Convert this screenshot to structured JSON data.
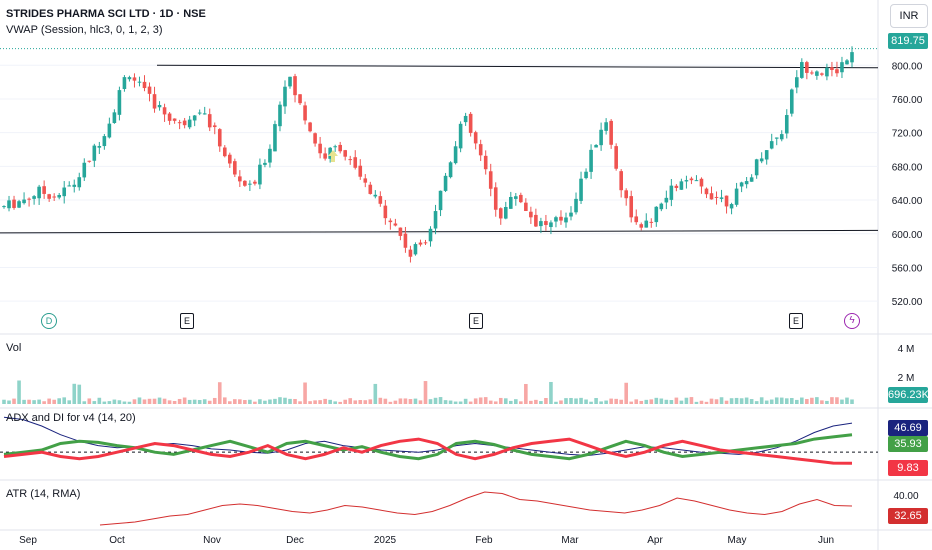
{
  "header": {
    "title": "STRIDES PHARMA SCI LTD · 1D · NSE",
    "vwap_label": "VWAP (Session, hlc3, 0, 1, 2, 3)",
    "currency": "INR"
  },
  "panes": {
    "volume_label": "Vol",
    "adx_label": "ADX and DI for v4 (14, 20)",
    "atr_label": "ATR (14, RMA)"
  },
  "badges": {
    "price": "819.75",
    "volume": "696.23K",
    "adx": "46.69",
    "di_plus": "35.93",
    "di_minus": "9.83",
    "atr": "32.65"
  },
  "events": {
    "dividend": "D",
    "earnings": [
      "E",
      "E",
      "E"
    ],
    "split": "ϟ"
  },
  "colors": {
    "up": "#26a69a",
    "down": "#ef5350",
    "adx": "#1a237e",
    "di_plus": "#43a047",
    "di_minus": "#f23645",
    "atr": "#d32f2f",
    "vol_up": "#8fd3c9",
    "vol_down": "#f7a7a5"
  },
  "chart_data": [
    {
      "type": "candlestick",
      "x_ticks": [
        "Sep",
        "Oct",
        "Nov",
        "Dec",
        "2025",
        "Feb",
        "Mar",
        "Apr",
        "May",
        "Jun"
      ],
      "y_ticks": [
        520,
        560,
        600,
        640,
        680,
        720,
        760,
        800
      ],
      "ylim": [
        500,
        830
      ],
      "trendlines": [
        {
          "from": [
            "Sep",
            601
          ],
          "to": [
            "Jun",
            604
          ]
        },
        {
          "from": [
            "Oct",
            800
          ],
          "to": [
            "Jun",
            797
          ]
        }
      ],
      "close_points": [
        [
          "Sep",
          632
        ],
        [
          "Sep",
          640
        ],
        [
          "Sep",
          650
        ],
        [
          "Sep",
          645
        ],
        [
          "Sep",
          660
        ],
        [
          "Oct",
          695
        ],
        [
          "Oct",
          735
        ],
        [
          "Oct",
          795
        ],
        [
          "Oct",
          765
        ],
        [
          "Oct",
          745
        ],
        [
          "Nov",
          728
        ],
        [
          "Nov",
          752
        ],
        [
          "Nov",
          718
        ],
        [
          "Nov",
          670
        ],
        [
          "Nov",
          652
        ],
        [
          "Dec",
          700
        ],
        [
          "Dec",
          790
        ],
        [
          "Dec",
          740
        ],
        [
          "Dec",
          690
        ],
        [
          "Dec",
          705
        ],
        [
          "2025",
          670
        ],
        [
          "2025",
          640
        ],
        [
          "2025",
          615
        ],
        [
          "2025",
          575
        ],
        [
          "2025",
          600
        ],
        [
          "Feb",
          670
        ],
        [
          "Feb",
          740
        ],
        [
          "Feb",
          690
        ],
        [
          "Feb",
          620
        ],
        [
          "Feb",
          648
        ],
        [
          "Mar",
          615
        ],
        [
          "Mar",
          610
        ],
        [
          "Mar",
          625
        ],
        [
          "Mar",
          680
        ],
        [
          "Mar",
          738
        ],
        [
          "Apr",
          650
        ],
        [
          "Apr",
          600
        ],
        [
          "Apr",
          628
        ],
        [
          "Apr",
          658
        ],
        [
          "Apr",
          660
        ],
        [
          "May",
          648
        ],
        [
          "May",
          638
        ],
        [
          "May",
          660
        ],
        [
          "May",
          700
        ],
        [
          "May",
          720
        ],
        [
          "Jun",
          800
        ],
        [
          "Jun",
          795
        ],
        [
          "Jun",
          790
        ],
        [
          "Jun",
          819.75
        ]
      ]
    },
    {
      "type": "bar",
      "name": "Vol",
      "y_ticks": [
        "2 M",
        "4 M"
      ],
      "last": "696.23K"
    },
    {
      "type": "line",
      "name": "ADX and DI for v4 (14, 20)",
      "series": [
        {
          "key": "adx",
          "values": [
            52,
            50,
            44,
            36,
            30,
            26,
            24,
            25,
            27,
            28,
            26,
            23,
            22,
            20,
            19,
            22,
            28,
            30,
            26,
            24,
            22,
            21,
            20,
            22,
            26,
            28,
            26,
            24,
            22,
            20,
            18,
            17,
            19,
            22,
            25,
            24,
            22,
            20,
            19,
            18,
            20,
            24,
            30,
            38,
            44,
            46.69
          ]
        },
        {
          "key": "di_plus",
          "values": [
            18,
            20,
            22,
            28,
            30,
            29,
            26,
            24,
            20,
            18,
            22,
            26,
            30,
            25,
            20,
            28,
            30,
            26,
            22,
            25,
            20,
            16,
            14,
            18,
            28,
            30,
            27,
            22,
            18,
            16,
            14,
            18,
            24,
            30,
            26,
            20,
            16,
            18,
            20,
            22,
            24,
            26,
            28,
            32,
            34,
            35.93
          ]
        },
        {
          "key": "di_minus",
          "values": [
            16,
            18,
            20,
            16,
            14,
            16,
            20,
            24,
            28,
            26,
            22,
            18,
            16,
            20,
            26,
            18,
            14,
            18,
            24,
            20,
            26,
            30,
            32,
            28,
            18,
            14,
            18,
            24,
            28,
            30,
            32,
            26,
            20,
            16,
            20,
            26,
            30,
            26,
            22,
            20,
            18,
            16,
            14,
            12,
            10,
            9.83
          ]
        }
      ],
      "reference_line": 20
    },
    {
      "type": "line",
      "name": "ATR (14, RMA)",
      "y_ticks": [
        40
      ],
      "values": [
        20,
        21,
        22,
        24,
        26,
        27,
        30,
        33,
        34,
        33,
        31,
        29,
        28,
        30,
        33,
        32,
        30,
        28,
        27,
        29,
        33,
        38,
        42,
        41,
        37,
        36,
        34,
        32,
        30,
        29,
        28,
        30,
        33,
        38,
        36,
        33,
        30,
        28,
        27,
        29,
        34,
        37,
        33,
        32.65
      ]
    }
  ]
}
